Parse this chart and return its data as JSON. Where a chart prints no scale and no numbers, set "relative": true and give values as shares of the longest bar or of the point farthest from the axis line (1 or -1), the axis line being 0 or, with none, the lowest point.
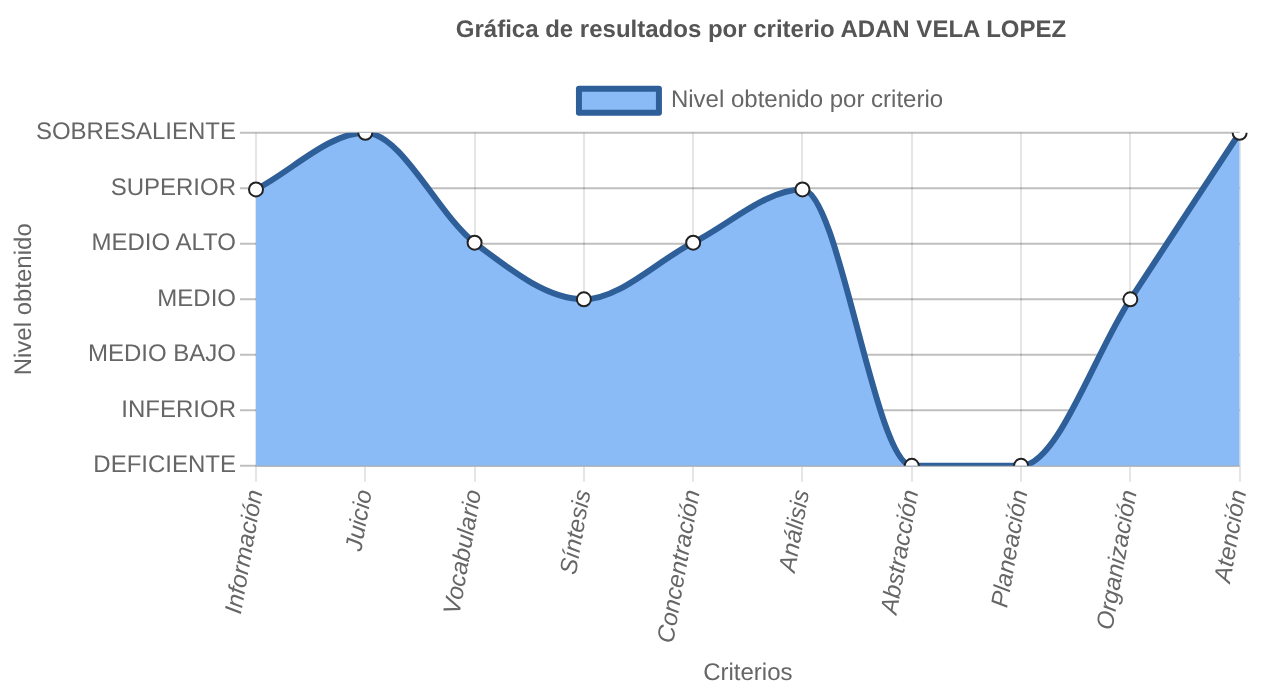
{
  "chart_data": {
    "type": "area",
    "title": "Gráfica de resultados por criterio ADAN VELA LOPEZ",
    "xlabel": "Criterios",
    "categories": [
      "Información",
      "Juicio",
      "Vocabulario",
      "Síntesis",
      "Concentración",
      "Análisis",
      "Abstracción",
      "Planeación",
      "Organización",
      "Atención"
    ],
    "series": [
      {
        "name": "Nivel obtenido por criterio",
        "color": "#2e5f99",
        "values": [
          0.83,
          1,
          0.67,
          0.5,
          0.67,
          0.83,
          0,
          0,
          0.5,
          1
        ]
      }
    ],
    "relative": true,
    "annotations": [
      "Nivel obtenido",
      "DEFICIENTE",
      "INFERIOR",
      "MEDIO BAJO",
      "MEDIO",
      "MEDIO ALTO",
      "SUPERIOR",
      "SOBRESALIENTE"
    ],
    "grid": true,
    "legend": "top",
    "marker": "circle",
    "line_style": "solid"
  }
}
